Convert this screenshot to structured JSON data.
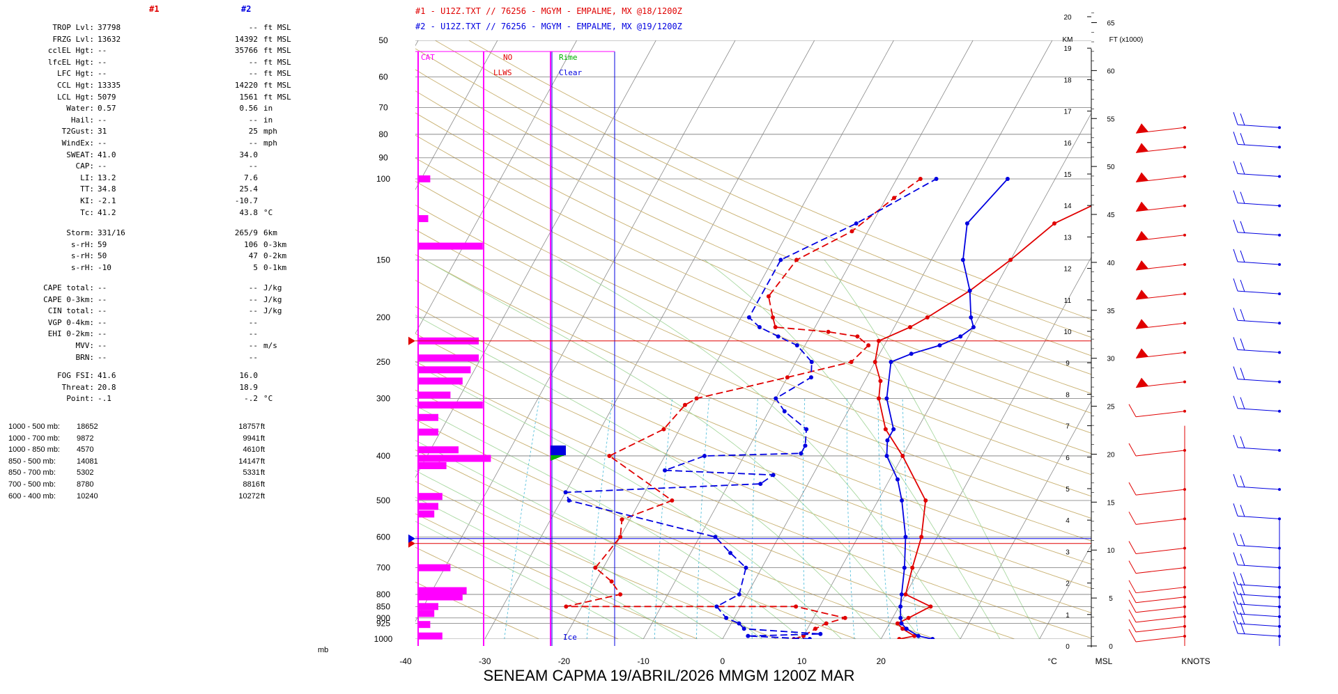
{
  "left_panel": {
    "col1_header": "#1",
    "col2_header": "#2",
    "rows": [
      {
        "label": "TROP Lvl:",
        "v1": "37798",
        "v2": "--",
        "unit": "ft MSL"
      },
      {
        "label": "FRZG Lvl:",
        "v1": "13632",
        "v2": "14392",
        "unit": "ft MSL"
      },
      {
        "label": "cclEL Hgt:",
        "v1": "--",
        "v2": "35766",
        "unit": "ft MSL"
      },
      {
        "label": "lfcEL Hgt:",
        "v1": "--",
        "v2": "--",
        "unit": "ft MSL"
      },
      {
        "label": "LFC Hgt:",
        "v1": "--",
        "v2": "--",
        "unit": "ft MSL"
      },
      {
        "label": "CCL Hgt:",
        "v1": "13335",
        "v2": "14220",
        "unit": "ft MSL"
      },
      {
        "label": "LCL Hgt:",
        "v1": "5079",
        "v2": "1561",
        "unit": "ft MSL"
      },
      {
        "label": "Water:",
        "v1": "0.57",
        "v2": "0.56",
        "unit": "in"
      },
      {
        "label": "Hail:",
        "v1": "--",
        "v2": "--",
        "unit": "in"
      },
      {
        "label": "T2Gust:",
        "v1": "31",
        "v2": "25",
        "unit": "mph"
      },
      {
        "label": "WindEx:",
        "v1": "--",
        "v2": "--",
        "unit": "mph"
      },
      {
        "label": "SWEAT:",
        "v1": "41.0",
        "v2": "34.0",
        "unit": ""
      },
      {
        "label": "CAP:",
        "v1": "--",
        "v2": "--",
        "unit": ""
      },
      {
        "label": "LI:",
        "v1": "13.2",
        "v2": "7.6",
        "unit": ""
      },
      {
        "label": "TT:",
        "v1": "34.8",
        "v2": "25.4",
        "unit": ""
      },
      {
        "label": "KI:",
        "v1": "-2.1",
        "v2": "-10.7",
        "unit": ""
      },
      {
        "label": "Tc:",
        "v1": "41.2",
        "v2": "43.8",
        "unit": "°C"
      }
    ],
    "storm_rows": [
      {
        "label": "Storm:",
        "v1": "331/16",
        "v2": "265/9",
        "unit": "6km"
      },
      {
        "label": "s-rH:",
        "v1": "59",
        "v2": "106",
        "unit": "0-3km"
      },
      {
        "label": "s-rH:",
        "v1": "50",
        "v2": "47",
        "unit": "0-2km"
      },
      {
        "label": "s-rH:",
        "v1": "-10",
        "v2": "5",
        "unit": "0-1km"
      }
    ],
    "cape_rows": [
      {
        "label": "CAPE total:",
        "v1": "--",
        "v2": "--",
        "unit": "J/kg"
      },
      {
        "label": "CAPE 0-3km:",
        "v1": "--",
        "v2": "--",
        "unit": "J/kg"
      },
      {
        "label": "CIN total:",
        "v1": "--",
        "v2": "--",
        "unit": "J/kg"
      },
      {
        "label": "VGP 0-4km:",
        "v1": "--",
        "v2": "--",
        "unit": ""
      },
      {
        "label": "EHI 0-2km:",
        "v1": "--",
        "v2": "--",
        "unit": ""
      },
      {
        "label": "MVV:",
        "v1": "--",
        "v2": "--",
        "unit": "m/s"
      },
      {
        "label": "BRN:",
        "v1": "--",
        "v2": "--",
        "unit": ""
      }
    ],
    "fog_rows": [
      {
        "label": "FOG FSI:",
        "v1": "41.6",
        "v2": "16.0",
        "unit": ""
      },
      {
        "label": "Threat:",
        "v1": "20.8",
        "v2": "18.9",
        "unit": ""
      },
      {
        "label": "Point:",
        "v1": "-.1",
        "v2": "-.2",
        "unit": "°C"
      }
    ],
    "thickness_rows": [
      {
        "label": "1000 - 500 mb:",
        "v1": "18652",
        "v2": "18757",
        "unit": "ft"
      },
      {
        "label": "1000 - 700 mb:",
        "v1": "9872",
        "v2": "9941",
        "unit": "ft"
      },
      {
        "label": "1000 - 850 mb:",
        "v1": "4570",
        "v2": "4610",
        "unit": "ft"
      },
      {
        "label": "850 - 500 mb:",
        "v1": "14081",
        "v2": "14147",
        "unit": "ft"
      },
      {
        "label": "850 - 700 mb:",
        "v1": "5302",
        "v2": "5331",
        "unit": "ft"
      },
      {
        "label": "700 - 500 mb:",
        "v1": "8780",
        "v2": "8816",
        "unit": "ft"
      },
      {
        "label": "600 - 400 mb:",
        "v1": "10240",
        "v2": "10272",
        "unit": "ft"
      }
    ],
    "mb_unit": "mb"
  },
  "chart_data": {
    "type": "line",
    "titles": [
      "#1 - U12Z.TXT // 76256 - MGYM - EMPALME, MX   @18/1200Z",
      "#2 - U12Z.TXT // 76256 - MGYM - EMPALME, MX   @19/1200Z"
    ],
    "bottom_title": "SENEAM   CAPMA   19/ABRIL/2026   MMGM   1200Z   MAR",
    "x_ticks": [
      -40,
      -30,
      -20,
      -10,
      0,
      10,
      20
    ],
    "x_unit": "°C",
    "msl_label": "MSL",
    "knots_label": "KNOTS",
    "km_label": "KM",
    "ft_label": "FT (x1000)",
    "pressure_levels": [
      50,
      60,
      70,
      80,
      90,
      100,
      150,
      200,
      250,
      300,
      400,
      500,
      600,
      700,
      800,
      850,
      900,
      925,
      1000
    ],
    "km_ticks": [
      0,
      1,
      2,
      3,
      4,
      5,
      6,
      7,
      8,
      9,
      10,
      11,
      12,
      13,
      14,
      15,
      16,
      17,
      18,
      19,
      20
    ],
    "ft_ticks": [
      0,
      5,
      10,
      15,
      20,
      25,
      30,
      35,
      40,
      45,
      50,
      55,
      60,
      65
    ],
    "icing_labels": {
      "cat": "CAT",
      "no": "NO",
      "llws": "LLWS",
      "rime": "Rime",
      "clear": "Clear",
      "ice": "Ice"
    },
    "colors": {
      "s1": "#e00000",
      "s2": "#0000e0",
      "cat": "#ff00ff",
      "rime": "#00b000",
      "grid": "#909090",
      "dry": "#c8b070",
      "moist": "#a8d8a0",
      "mix": "#40b8d8"
    },
    "series": [
      {
        "name": "#1",
        "temp": [
          [
            1000,
            22.3
          ],
          [
            985,
            24
          ],
          [
            950,
            22
          ],
          [
            925,
            21
          ],
          [
            900,
            22
          ],
          [
            850,
            24
          ],
          [
            800,
            20
          ],
          [
            700,
            19
          ],
          [
            600,
            18
          ],
          [
            500,
            16
          ],
          [
            400,
            10
          ],
          [
            350,
            6
          ],
          [
            300,
            3
          ],
          [
            275,
            2
          ],
          [
            250,
            0
          ],
          [
            225,
            -1
          ],
          [
            210,
            2
          ],
          [
            200,
            3.5
          ],
          [
            175,
            7
          ],
          [
            150,
            10
          ],
          [
            125,
            13
          ],
          [
            110,
            18
          ],
          [
            100,
            20
          ]
        ],
        "dew": [
          [
            1000,
            9
          ],
          [
            985,
            10
          ],
          [
            950,
            11
          ],
          [
            925,
            12
          ],
          [
            900,
            14
          ],
          [
            850,
            7
          ],
          [
            850,
            -22
          ],
          [
            800,
            -16
          ],
          [
            750,
            -18
          ],
          [
            700,
            -21
          ],
          [
            600,
            -20
          ],
          [
            550,
            -21
          ],
          [
            500,
            -16
          ],
          [
            400,
            -27
          ],
          [
            350,
            -22
          ],
          [
            310,
            -21
          ],
          [
            300,
            -20
          ],
          [
            270,
            -10
          ],
          [
            250,
            -3
          ],
          [
            230,
            -2
          ],
          [
            220,
            -4
          ],
          [
            215,
            -8
          ],
          [
            210,
            -15
          ],
          [
            200,
            -16
          ],
          [
            180,
            -18
          ],
          [
            150,
            -17
          ],
          [
            130,
            -12
          ],
          [
            110,
            -9
          ],
          [
            100,
            -7
          ]
        ]
      },
      {
        "name": "#2",
        "temp": [
          [
            1000,
            26.5
          ],
          [
            985,
            24.5
          ],
          [
            950,
            22.5
          ],
          [
            925,
            21.5
          ],
          [
            900,
            21
          ],
          [
            850,
            20.2
          ],
          [
            800,
            19.5
          ],
          [
            700,
            18
          ],
          [
            600,
            16
          ],
          [
            500,
            13
          ],
          [
            450,
            11
          ],
          [
            400,
            8
          ],
          [
            370,
            7
          ],
          [
            350,
            7
          ],
          [
            300,
            4
          ],
          [
            250,
            2
          ],
          [
            240,
            4
          ],
          [
            230,
            7
          ],
          [
            220,
            9
          ],
          [
            210,
            10
          ],
          [
            200,
            9
          ],
          [
            175,
            7
          ],
          [
            150,
            4
          ],
          [
            125,
            2
          ],
          [
            100,
            4
          ]
        ],
        "dew": [
          [
            1000,
            11
          ],
          [
            985,
            3
          ],
          [
            975,
            12
          ],
          [
            950,
            2
          ],
          [
            925,
            1
          ],
          [
            900,
            -1
          ],
          [
            850,
            -3
          ],
          [
            800,
            -1
          ],
          [
            700,
            -2
          ],
          [
            650,
            -5
          ],
          [
            600,
            -8
          ],
          [
            500,
            -29
          ],
          [
            480,
            -30
          ],
          [
            460,
            -6
          ],
          [
            440,
            -5
          ],
          [
            430,
            -19
          ],
          [
            400,
            -15
          ],
          [
            395,
            -3
          ],
          [
            380,
            -3
          ],
          [
            350,
            -4
          ],
          [
            320,
            -8
          ],
          [
            300,
            -10
          ],
          [
            270,
            -7
          ],
          [
            250,
            -8
          ],
          [
            230,
            -11
          ],
          [
            220,
            -14
          ],
          [
            210,
            -17
          ],
          [
            200,
            -19
          ],
          [
            150,
            -19
          ],
          [
            125,
            -12
          ],
          [
            100,
            -5
          ]
        ]
      }
    ],
    "wind_ft": [
      1,
      2,
      3,
      4,
      5,
      6,
      8,
      10,
      13,
      16,
      20,
      24,
      27,
      30,
      33,
      36,
      39,
      42,
      45,
      48,
      51,
      53
    ],
    "tropo_mb": 225,
    "frz_mb": 620,
    "frz2_mb": 605,
    "icing_bar_levels": [
      100,
      150,
      225,
      250,
      270,
      300,
      330,
      360,
      380,
      400,
      420,
      500,
      700,
      800,
      850,
      1000
    ]
  }
}
